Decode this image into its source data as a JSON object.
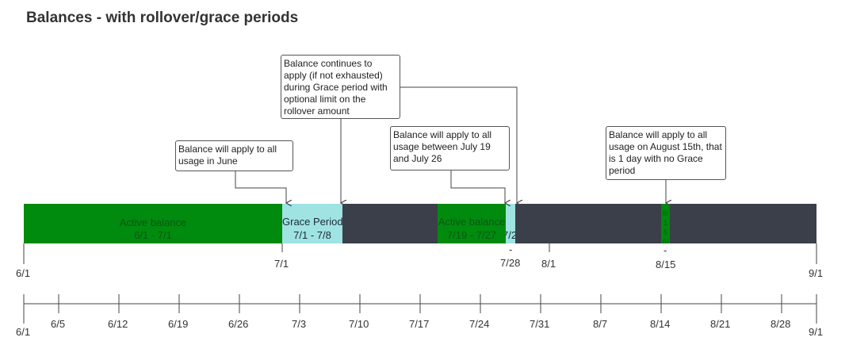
{
  "title": "Balances - with rollover/grace periods",
  "notes": {
    "june": "Balance will apply to all usage in June",
    "grace": "Balance continues to apply (if not exhausted) during Grace period with optional limit on the rollover amount",
    "july": "Balance will apply to all usage between July 19 and July 26",
    "aug": "Balance will apply to all usage on August 15th, that is 1 day with no Grace period"
  },
  "segments": {
    "june_label": "Active balance",
    "june_range": "6/1 - 7/1",
    "grace_label": "Grace Period",
    "grace_range": "7/1 - 7/8",
    "july_label": "Active balance",
    "july_range": "7/19 - 7/27",
    "july_grace_range": "7/2",
    "aug_label": "8/15 8/15"
  },
  "upper_axis": {
    "start": "6/1",
    "ticks": [
      "7/1",
      "-",
      "7/28",
      "8/1",
      "-",
      "8/15"
    ],
    "end": "9/1"
  },
  "lower_axis": {
    "labels": [
      "6/1",
      "6/5",
      "6/12",
      "6/19",
      "6/26",
      "7/3",
      "7/10",
      "7/17",
      "7/24",
      "7/31",
      "8/7",
      "8/14",
      "8/21",
      "8/28",
      "9/1"
    ]
  },
  "colors": {
    "bar": "#3a3f49",
    "active": "#008a0e",
    "grace": "#9fe3e3",
    "axis": "#444444"
  }
}
